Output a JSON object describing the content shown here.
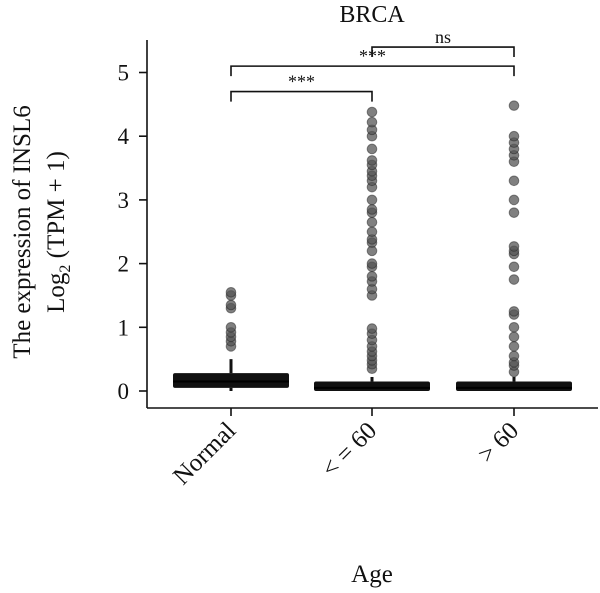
{
  "chart_data": {
    "type": "boxplot",
    "title": "BRCA",
    "xlabel": "Age",
    "ylabel_line1": "The expression of INSL6",
    "ylabel_line2_prefix": "Log",
    "ylabel_line2_sub": "2",
    "ylabel_line2_suffix": " (TPM + 1)",
    "categories": [
      "Normal",
      "< = 60",
      "> 60"
    ],
    "y_ticks": [
      "0",
      "1",
      "2",
      "3",
      "4",
      "5"
    ],
    "ylim": [
      -0.3,
      5.5
    ],
    "boxes": [
      {
        "category": "Normal",
        "q1": 0.05,
        "median": 0.15,
        "q3": 0.28,
        "whisker_low": 0.0,
        "whisker_high": 0.5,
        "outliers": [
          0.7,
          0.78,
          0.85,
          0.92,
          1.0,
          1.3,
          1.35,
          1.5,
          1.55
        ]
      },
      {
        "category": "< = 60",
        "q1": 0.0,
        "median": 0.05,
        "q3": 0.15,
        "whisker_low": 0.0,
        "whisker_high": 0.22,
        "outliers": [
          0.35,
          0.42,
          0.48,
          0.55,
          0.62,
          0.7,
          0.8,
          0.9,
          0.98,
          1.5,
          1.6,
          1.72,
          1.8,
          1.95,
          2.0,
          2.2,
          2.33,
          2.38,
          2.5,
          2.65,
          2.8,
          2.85,
          3.0,
          3.2,
          3.3,
          3.38,
          3.45,
          3.55,
          3.62,
          3.8,
          4.0,
          4.1,
          4.22,
          4.38
        ]
      },
      {
        "category": "> 60",
        "q1": 0.0,
        "median": 0.05,
        "q3": 0.15,
        "whisker_low": 0.0,
        "whisker_high": 0.22,
        "outliers": [
          0.3,
          0.4,
          0.45,
          0.55,
          0.7,
          0.85,
          1.0,
          1.2,
          1.25,
          1.75,
          1.95,
          2.15,
          2.2,
          2.27,
          2.8,
          3.0,
          3.3,
          3.6,
          3.7,
          3.8,
          3.9,
          4.0,
          4.48
        ]
      }
    ],
    "significance": [
      {
        "from": "Normal",
        "to": "< = 60",
        "y": 4.7,
        "label": "***"
      },
      {
        "from": "Normal",
        "to": "> 60",
        "y": 5.1,
        "label": "***"
      },
      {
        "from": "< = 60",
        "to": "> 60",
        "y": 5.4,
        "label": "ns"
      }
    ],
    "colors": {
      "box": "#111111",
      "outlier": "#555555"
    }
  }
}
